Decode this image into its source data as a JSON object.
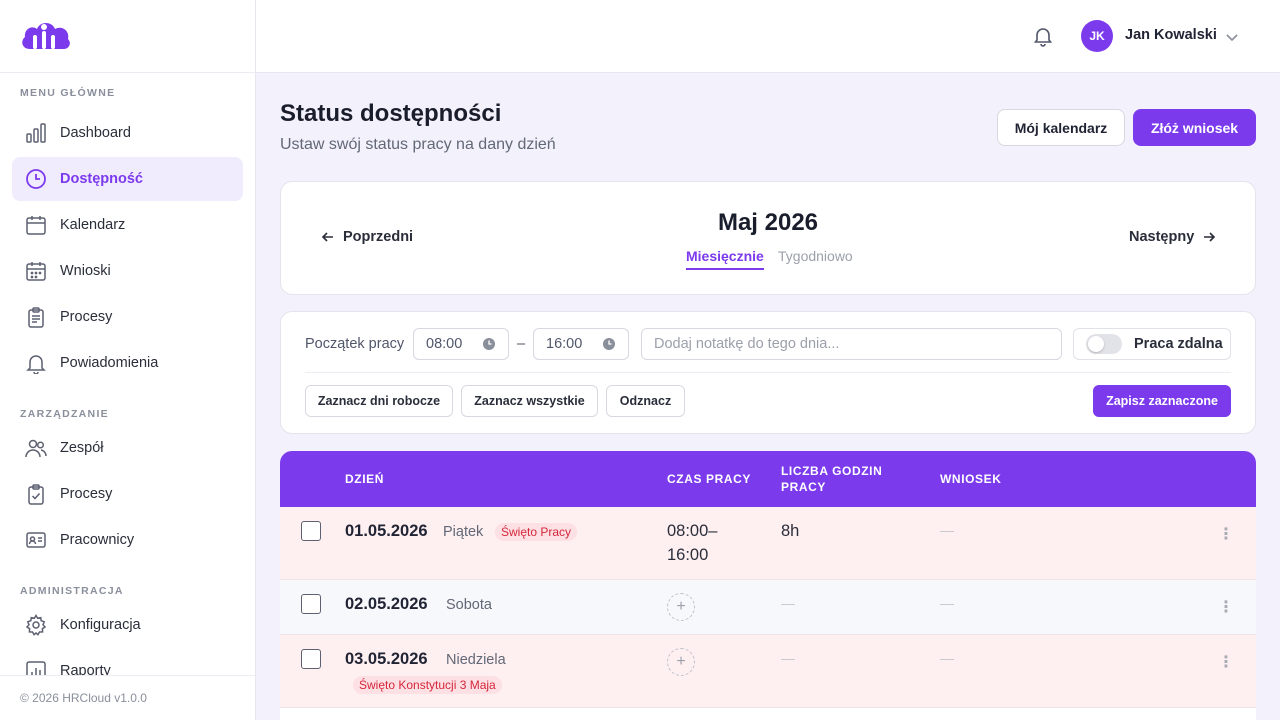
{
  "sidebar": {
    "sections": [
      {
        "label": "MENU GŁÓWNE"
      },
      {
        "label": "ZARZĄDZANIE"
      },
      {
        "label": "ADMINISTRACJA"
      }
    ],
    "items": [
      {
        "label": "Dashboard",
        "icon": "bar-chart-icon"
      },
      {
        "label": "Dostępność",
        "icon": "clock-icon",
        "active": true
      },
      {
        "label": "Kalendarz",
        "icon": "calendar-icon"
      },
      {
        "label": "Wnioski",
        "icon": "calendar-grid-icon"
      },
      {
        "label": "Procesy",
        "icon": "clipboard-icon"
      },
      {
        "label": "Powiadomienia",
        "icon": "bell-icon"
      },
      {
        "label": "Zespół",
        "icon": "users-icon"
      },
      {
        "label": "Procesy",
        "icon": "clipboard-check-icon"
      },
      {
        "label": "Pracownicy",
        "icon": "id-card-icon"
      },
      {
        "label": "Konfiguracja",
        "icon": "gear-icon"
      },
      {
        "label": "Raporty",
        "icon": "bar-chart-icon"
      }
    ],
    "footer": "© 2026 HRCloud v1.0.0"
  },
  "topbar": {
    "user_initials": "JK",
    "user_name": "Jan Kowalski"
  },
  "header": {
    "title": "Status dostępności",
    "subtitle": "Ustaw swój status pracy na dany dzień",
    "calendar_button": "Mój kalendarz",
    "request_button": "Złóż wniosek"
  },
  "month_nav": {
    "title": "Maj 2026",
    "prev": "Poprzedni",
    "next": "Następny",
    "view_monthly": "Miesięcznie",
    "view_weekly": "Tygodniowo"
  },
  "controls": {
    "start_label": "Początek pracy",
    "start_time": "08:00",
    "separator": "–",
    "end_time": "16:00",
    "note_placeholder": "Dodaj notatkę do tego dnia...",
    "remote_label": "Praca zdalna",
    "remote_on": false,
    "mark_workdays": "Zaznacz dni robocze",
    "mark_all": "Zaznacz wszystkie",
    "unmark": "Odznacz",
    "save_selected": "Zapisz zaznaczone"
  },
  "table": {
    "headers": {
      "day": "DZIEŃ",
      "work_time": "CZAS PRACY",
      "hours_line1": "LICZBA GODZIN",
      "hours_line2": "PRACY",
      "request": "WNIOSEK"
    },
    "rows": [
      {
        "date": "01.05.2026",
        "dayname": "Piątek",
        "holiday": "Święto Pracy",
        "time_line1": "08:00–",
        "time_line2": "16:00",
        "hours": "8h",
        "request": "—",
        "kebab": "⋮"
      },
      {
        "date": "02.05.2026",
        "dayname": "Sobota",
        "holiday": "",
        "hours": "—",
        "request": "—",
        "add": "+",
        "kebab": "⋮"
      },
      {
        "date": "03.05.2026",
        "dayname": "Niedziela",
        "holiday": "Święto Konstytucji 3 Maja",
        "hours": "—",
        "request": "—",
        "add": "+",
        "kebab": "⋮"
      }
    ]
  },
  "colors": {
    "accent": "#7c3aed",
    "holiday_bg": "#feeff0",
    "holiday_text": "#d6263b"
  }
}
